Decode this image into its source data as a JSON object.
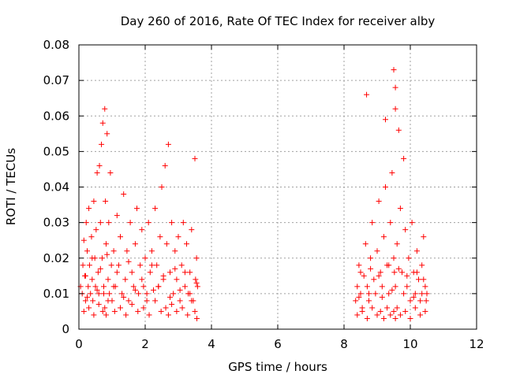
{
  "chart_data": {
    "type": "scatter",
    "title": "Day 260 of 2016, Rate Of TEC Index for receiver alby",
    "xlabel": "GPS time / hours",
    "ylabel": "ROTI / TECUs",
    "xlim": [
      0,
      12
    ],
    "ylim": [
      0,
      0.08
    ],
    "xticks": [
      0,
      2,
      4,
      6,
      8,
      10,
      12
    ],
    "xtick_labels": [
      "0",
      "2",
      "4",
      "6",
      "8",
      "10",
      "12"
    ],
    "yticks": [
      0,
      0.01,
      0.02,
      0.03,
      0.04,
      0.05,
      0.06,
      0.07,
      0.08
    ],
    "ytick_labels": [
      "0",
      "0.01",
      "0.02",
      "0.03",
      "0.04",
      "0.05",
      "0.06",
      "0.07",
      "0.08"
    ],
    "grid": true,
    "marker": "+",
    "marker_color": "#ff0000",
    "series": [
      {
        "name": "ROTI",
        "x": [
          0.05,
          0.1,
          0.12,
          0.15,
          0.18,
          0.2,
          0.22,
          0.25,
          0.28,
          0.3,
          0.32,
          0.35,
          0.38,
          0.4,
          0.42,
          0.45,
          0.48,
          0.5,
          0.52,
          0.55,
          0.58,
          0.6,
          0.62,
          0.65,
          0.68,
          0.7,
          0.72,
          0.75,
          0.78,
          0.8,
          0.82,
          0.85,
          0.88,
          0.9,
          0.92,
          0.95,
          0.98,
          1.0,
          1.05,
          1.1,
          1.15,
          1.2,
          1.25,
          1.3,
          1.35,
          1.4,
          1.45,
          1.5,
          1.55,
          1.6,
          1.65,
          1.7,
          1.75,
          1.8,
          1.85,
          1.9,
          1.95,
          2.0,
          2.05,
          2.1,
          2.15,
          2.2,
          2.25,
          2.3,
          2.35,
          2.4,
          2.45,
          2.5,
          2.55,
          2.6,
          2.65,
          2.7,
          2.75,
          2.8,
          2.85,
          2.9,
          2.95,
          3.0,
          3.05,
          3.1,
          3.15,
          3.2,
          3.25,
          3.3,
          3.35,
          3.4,
          3.45,
          3.5,
          3.55,
          3.58,
          0.15,
          0.3,
          0.45,
          0.6,
          0.72,
          0.78,
          0.82,
          0.88,
          1.08,
          1.25,
          1.42,
          1.6,
          1.78,
          1.95,
          2.12,
          2.3,
          2.48,
          2.62,
          2.7,
          2.8,
          2.95,
          3.12,
          3.28,
          3.4,
          3.5,
          3.56,
          0.2,
          0.4,
          0.65,
          0.85,
          1.15,
          1.5,
          1.9,
          2.2,
          2.55,
          2.9,
          3.2,
          3.52,
          0.25,
          0.55,
          0.75,
          1.05,
          1.35,
          1.7,
          2.05,
          2.4,
          2.75,
          3.05,
          3.35,
          3.55,
          8.35,
          8.4,
          8.45,
          8.5,
          8.55,
          8.6,
          8.65,
          8.7,
          8.75,
          8.8,
          8.85,
          8.9,
          8.95,
          9.0,
          9.05,
          9.1,
          9.15,
          9.2,
          9.25,
          9.3,
          9.35,
          9.4,
          9.45,
          9.5,
          9.55,
          9.6,
          9.65,
          9.7,
          9.75,
          9.8,
          9.85,
          9.9,
          9.95,
          10.0,
          10.05,
          10.1,
          10.15,
          10.2,
          10.25,
          10.3,
          10.35,
          10.4,
          10.45,
          10.5,
          8.4,
          8.55,
          8.7,
          8.85,
          9.0,
          9.1,
          9.2,
          9.3,
          9.4,
          9.5,
          9.55,
          9.6,
          9.7,
          9.85,
          10.0,
          10.15,
          10.3,
          10.45,
          8.5,
          8.8,
          9.05,
          9.35,
          9.52,
          9.65,
          9.9,
          10.2,
          10.4,
          8.45,
          8.75,
          9.15,
          9.45,
          9.8,
          10.1,
          10.35,
          10.48,
          8.68,
          9.5,
          9.55,
          9.25,
          9.55
        ],
        "y": [
          0.012,
          0.01,
          0.018,
          0.025,
          0.015,
          0.008,
          0.03,
          0.022,
          0.012,
          0.034,
          0.018,
          0.01,
          0.026,
          0.014,
          0.008,
          0.036,
          0.02,
          0.012,
          0.028,
          0.044,
          0.016,
          0.01,
          0.046,
          0.03,
          0.052,
          0.02,
          0.058,
          0.012,
          0.062,
          0.036,
          0.024,
          0.055,
          0.014,
          0.03,
          0.01,
          0.044,
          0.018,
          0.008,
          0.022,
          0.012,
          0.032,
          0.018,
          0.026,
          0.01,
          0.038,
          0.014,
          0.022,
          0.008,
          0.03,
          0.016,
          0.012,
          0.024,
          0.034,
          0.01,
          0.018,
          0.028,
          0.012,
          0.02,
          0.008,
          0.03,
          0.016,
          0.022,
          0.011,
          0.034,
          0.018,
          0.012,
          0.026,
          0.04,
          0.014,
          0.046,
          0.024,
          0.052,
          0.016,
          0.03,
          0.01,
          0.022,
          0.014,
          0.026,
          0.008,
          0.018,
          0.03,
          0.012,
          0.024,
          0.01,
          0.016,
          0.028,
          0.008,
          0.048,
          0.02,
          0.012,
          0.005,
          0.006,
          0.004,
          0.007,
          0.005,
          0.006,
          0.004,
          0.008,
          0.005,
          0.006,
          0.004,
          0.007,
          0.005,
          0.006,
          0.004,
          0.008,
          0.005,
          0.006,
          0.004,
          0.007,
          0.005,
          0.006,
          0.004,
          0.008,
          0.005,
          0.003,
          0.015,
          0.02,
          0.017,
          0.021,
          0.016,
          0.019,
          0.014,
          0.018,
          0.015,
          0.017,
          0.016,
          0.014,
          0.009,
          0.011,
          0.01,
          0.012,
          0.009,
          0.011,
          0.01,
          0.012,
          0.009,
          0.011,
          0.01,
          0.013,
          0.008,
          0.012,
          0.018,
          0.01,
          0.006,
          0.015,
          0.024,
          0.012,
          0.008,
          0.02,
          0.03,
          0.014,
          0.01,
          0.022,
          0.036,
          0.016,
          0.012,
          0.026,
          0.04,
          0.018,
          0.01,
          0.03,
          0.044,
          0.02,
          0.012,
          0.024,
          0.056,
          0.034,
          0.016,
          0.048,
          0.028,
          0.012,
          0.02,
          0.008,
          0.03,
          0.016,
          0.01,
          0.022,
          0.014,
          0.008,
          0.018,
          0.026,
          0.012,
          0.01,
          0.004,
          0.005,
          0.003,
          0.006,
          0.004,
          0.005,
          0.003,
          0.006,
          0.004,
          0.005,
          0.003,
          0.006,
          0.004,
          0.005,
          0.003,
          0.006,
          0.004,
          0.005,
          0.016,
          0.017,
          0.015,
          0.018,
          0.016,
          0.017,
          0.015,
          0.016,
          0.014,
          0.009,
          0.01,
          0.009,
          0.011,
          0.01,
          0.009,
          0.01,
          0.008,
          0.066,
          0.073,
          0.068,
          0.059,
          0.062
        ]
      }
    ]
  }
}
